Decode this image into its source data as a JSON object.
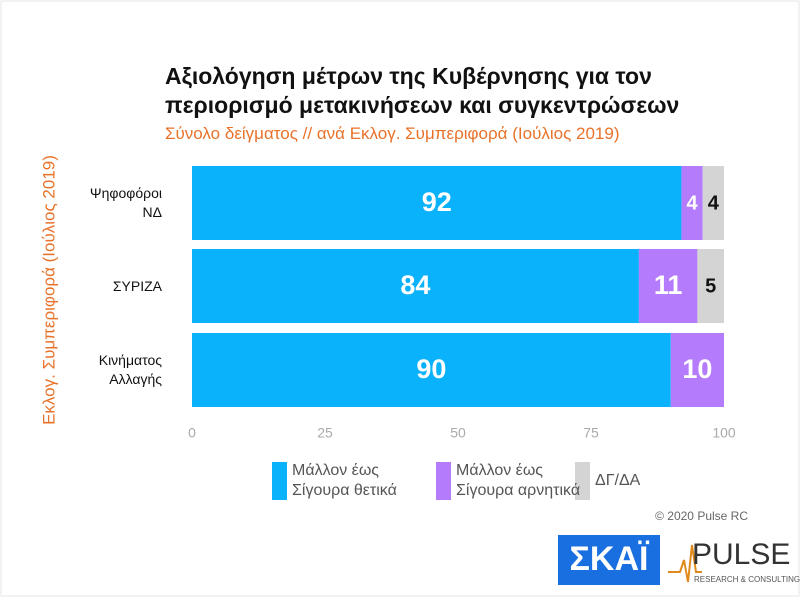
{
  "chart_data": {
    "type": "stacked_bar_horizontal",
    "title": "Αξιολόγηση μέτρων της Κυβέρνησης για τον περιορισμό μετακινήσεων και συγκεντρώσεων",
    "subtitle": "Σύνολο δείγματος // ανά Εκλογ. Συμπεριφορά (Ιούλιος 2019)",
    "y_label": "Εκλογ. Συμπεριφορά (Ιούλιος 2019)",
    "categories": [
      "Ψηφοφόροι ΝΔ",
      "ΣΥΡΙΖΑ",
      "Κινήματος Αλλαγής"
    ],
    "series": [
      {
        "name": "Μάλλον έως Σίγουρα θετικά",
        "color": "#0ab2fb",
        "label_color": "#ffffff",
        "values": [
          92,
          84,
          90
        ]
      },
      {
        "name": "Μάλλον έως Σίγουρα αρνητικά",
        "color": "#b47cfc",
        "label_color": "#ffffff",
        "values": [
          4,
          11,
          10
        ]
      },
      {
        "name": "ΔΓ/ΔΑ",
        "color": "#d4d4d4",
        "label_color": "#111111",
        "values": [
          4,
          5,
          null
        ]
      }
    ],
    "xlim": [
      0,
      100
    ],
    "xticks": [
      0,
      25,
      50,
      75,
      100
    ],
    "grid": false,
    "legend": "bottom",
    "copyright": "© 2020 Pulse RC",
    "logos": {
      "skai": "ΣΚΑΪ",
      "pulse": "PULSE",
      "pulse_sub": "RESEARCH & CONSULTING"
    }
  }
}
